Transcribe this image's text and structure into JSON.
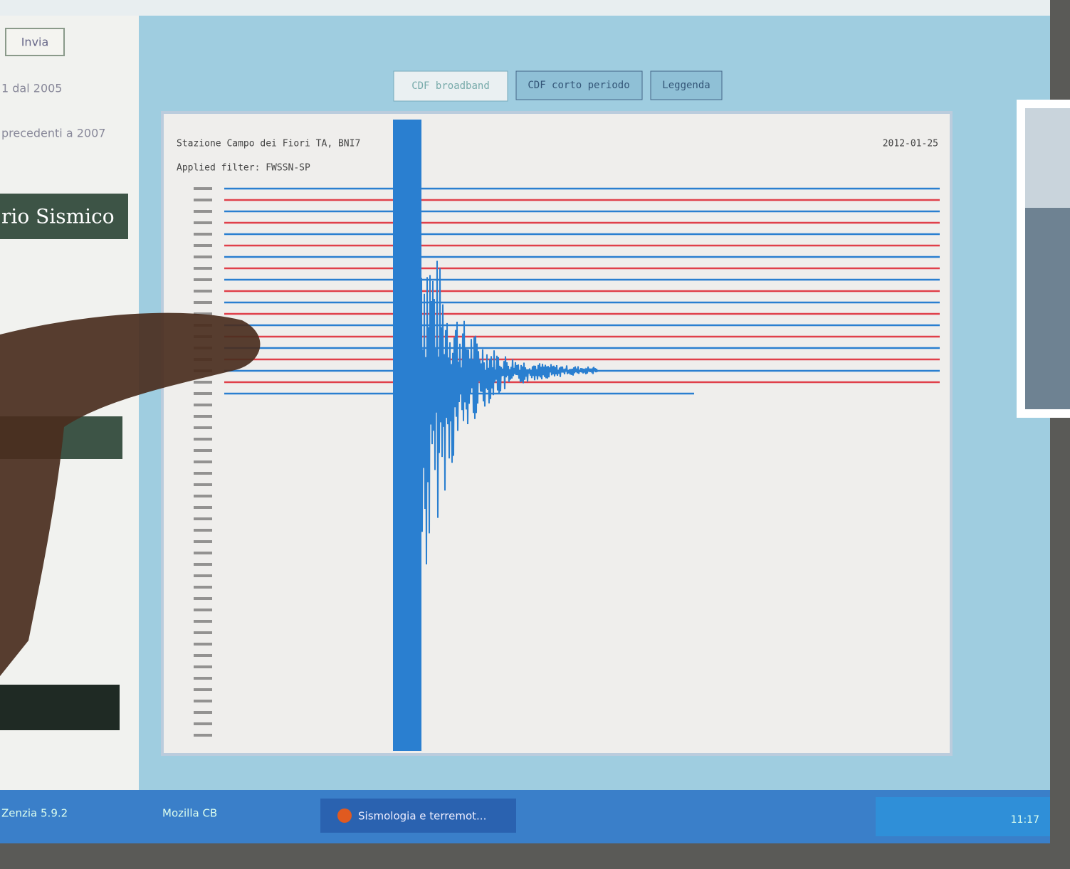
{
  "sidebar": {
    "button": "Invia",
    "items": [
      "1 dal 2005",
      "precedenti a 2007"
    ],
    "heading": "rio Sismico"
  },
  "tabs": [
    "CDF broadband",
    "CDF corto periodo",
    "Leggenda"
  ],
  "plot": {
    "station": "Stazione Campo dei Fiori TA, BNI7",
    "filter": "Applied filter: FWSSN-SP",
    "date": "2012-01-25"
  },
  "taskbar": {
    "items": [
      "Zenzia 5.9.2",
      "Mozilla CB",
      "Sismologia e terremot..."
    ],
    "clock": "11:17"
  }
}
